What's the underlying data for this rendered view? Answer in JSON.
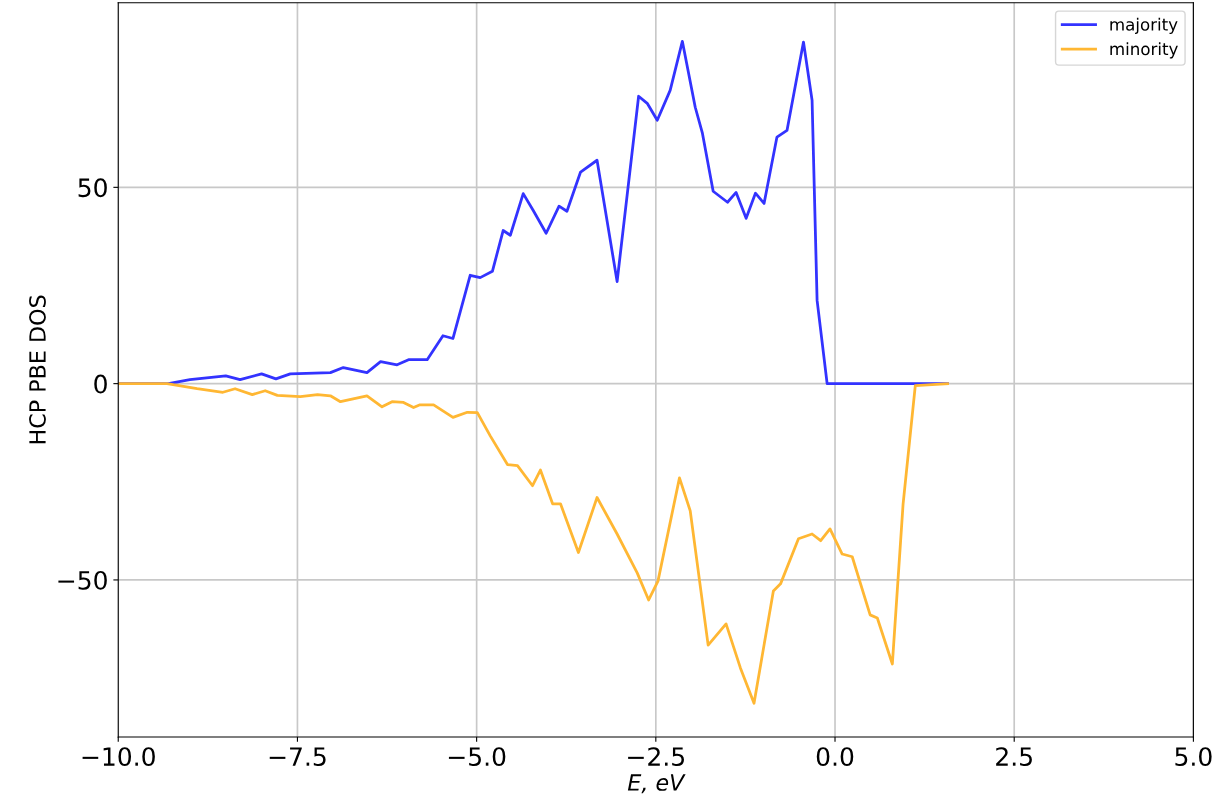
{
  "chart_data": {
    "type": "line",
    "xlabel": "E, eV",
    "ylabel": "HCP PBE DOS",
    "xlim": [
      -10,
      5
    ],
    "xticks": [
      {
        "value": -10,
        "label": "−10.0"
      },
      {
        "value": -7.5,
        "label": "−7.5"
      },
      {
        "value": -5,
        "label": "−5.0"
      },
      {
        "value": -2.5,
        "label": "−2.5"
      },
      {
        "value": 0,
        "label": "0.0"
      },
      {
        "value": 2.5,
        "label": "2.5"
      },
      {
        "value": 5,
        "label": "5.0"
      }
    ],
    "ylim": [
      -90,
      97
    ],
    "yticks": [
      {
        "value": -50,
        "label": "−50"
      },
      0,
      50
    ],
    "grid": true,
    "legend": "top right",
    "line_style": "solid",
    "marker": "none",
    "series": [
      {
        "name": "majority",
        "color": "#3333ff",
        "x": [
          -10,
          -9.3,
          -9.0,
          -8.5,
          -8.3,
          -8.0,
          -7.8,
          -7.6,
          -7.04,
          -6.86,
          -6.53,
          -6.34,
          -6.11,
          -5.95,
          -5.69,
          -5.47,
          -5.33,
          -5.09,
          -4.95,
          -4.78,
          -4.63,
          -4.53,
          -4.35,
          -4.21,
          -4.03,
          -3.85,
          -3.74,
          -3.55,
          -3.32,
          -3.04,
          -2.74,
          -2.62,
          -2.48,
          -2.3,
          -2.13,
          -1.95,
          -1.85,
          -1.7,
          -1.5,
          -1.38,
          -1.24,
          -1.11,
          -0.99,
          -0.81,
          -0.67,
          -0.44,
          -0.32,
          -0.25,
          -0.11,
          1.57
        ],
        "values": [
          0,
          0,
          1,
          2,
          1,
          2.5,
          1.2,
          2.5,
          2.8,
          4.1,
          2.8,
          5.6,
          4.8,
          6.1,
          6.1,
          12.2,
          11.5,
          27.6,
          27,
          28.6,
          39,
          37.8,
          48.4,
          44.1,
          38.3,
          45.2,
          43.9,
          53.9,
          56.9,
          26,
          73.2,
          71.4,
          67.1,
          74.7,
          87.2,
          70.4,
          63.8,
          49,
          46.2,
          48.7,
          42.1,
          48.5,
          45.9,
          62.8,
          64.5,
          87,
          72.2,
          21.2,
          0,
          0
        ]
      },
      {
        "name": "minority",
        "color": "#ffb733",
        "x": [
          -10,
          -9.32,
          -8.9,
          -8.54,
          -8.37,
          -8.13,
          -7.95,
          -7.78,
          -7.46,
          -7.22,
          -7.04,
          -6.9,
          -6.53,
          -6.32,
          -6.18,
          -6.02,
          -5.88,
          -5.79,
          -5.6,
          -5.33,
          -5.13,
          -4.99,
          -4.81,
          -4.57,
          -4.43,
          -4.22,
          -4.11,
          -3.94,
          -3.83,
          -3.58,
          -3.32,
          -3.04,
          -2.76,
          -2.6,
          -2.47,
          -2.17,
          -2.02,
          -1.77,
          -1.52,
          -1.32,
          -1.13,
          -0.86,
          -0.76,
          -0.51,
          -0.32,
          -0.2,
          -0.07,
          0.1,
          0.24,
          0.49,
          0.59,
          0.8,
          0.95,
          1.12,
          1.57
        ],
        "values": [
          0,
          0,
          -1.3,
          -2.2,
          -1.3,
          -2.8,
          -1.8,
          -3.0,
          -3.3,
          -2.8,
          -3.1,
          -4.6,
          -3.1,
          -5.9,
          -4.6,
          -4.8,
          -6.1,
          -5.4,
          -5.4,
          -8.6,
          -7.3,
          -7.4,
          -13.3,
          -20.6,
          -20.9,
          -26,
          -22,
          -30.6,
          -30.6,
          -43,
          -29,
          -38.3,
          -48.2,
          -55.1,
          -50.3,
          -24,
          -32.4,
          -66.6,
          -61.2,
          -72.4,
          -81.4,
          -52.8,
          -51,
          -39.5,
          -38.3,
          -40,
          -37,
          -43.4,
          -44.1,
          -58.9,
          -59.7,
          -71.4,
          -30.6,
          -0.5,
          0
        ]
      }
    ]
  }
}
